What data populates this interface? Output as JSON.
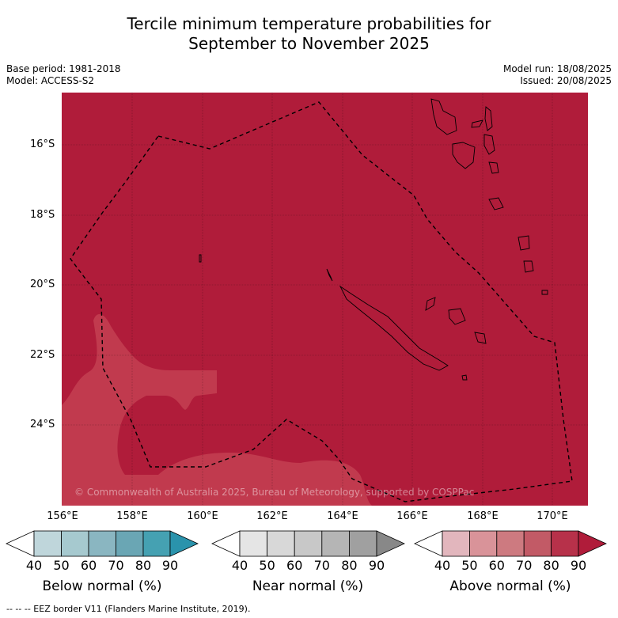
{
  "title": {
    "line1": "Tercile minimum temperature probabilities for",
    "line2": "September to November 2025"
  },
  "meta": {
    "base_period": "Base period: 1981-2018",
    "model": "Model: ACCESS-S2",
    "model_run": "Model run: 18/08/2025",
    "issued": "Issued: 20/08/2025"
  },
  "map": {
    "lat_labels": [
      "16°S",
      "18°S",
      "20°S",
      "22°S",
      "24°S"
    ],
    "lon_labels": [
      "156°E",
      "158°E",
      "160°E",
      "162°E",
      "164°E",
      "166°E",
      "168°E",
      "170°E"
    ],
    "copyright": "© Commonwealth of Australia 2025, Bureau of Meteorology, supported by COSPPac",
    "colors": {
      "above_80_90": "#b01c3a",
      "above_70_80": "#c13a4e",
      "border": "#000000"
    }
  },
  "legends": [
    {
      "title": "Below normal (%)",
      "ticks": [
        "40",
        "50",
        "60",
        "70",
        "80",
        "90"
      ],
      "colors": [
        "#bfd6db",
        "#a6c9cf",
        "#8ab6c1",
        "#6aa6b4",
        "#45a1b2",
        "#2a93ac"
      ]
    },
    {
      "title": "Near normal (%)",
      "ticks": [
        "40",
        "50",
        "60",
        "70",
        "80",
        "90"
      ],
      "colors": [
        "#e5e5e5",
        "#d8d8d8",
        "#c8c8c8",
        "#b5b5b5",
        "#a0a0a0",
        "#888888"
      ]
    },
    {
      "title": "Above normal (%)",
      "ticks": [
        "40",
        "50",
        "60",
        "70",
        "80",
        "90"
      ],
      "colors": [
        "#e2b6bd",
        "#d99399",
        "#cd7a80",
        "#c25a66",
        "#b7314a",
        "#b01c3a"
      ]
    }
  ],
  "footer": "-- -- -- EEZ border V11 (Flanders Marine Institute, 2019)."
}
